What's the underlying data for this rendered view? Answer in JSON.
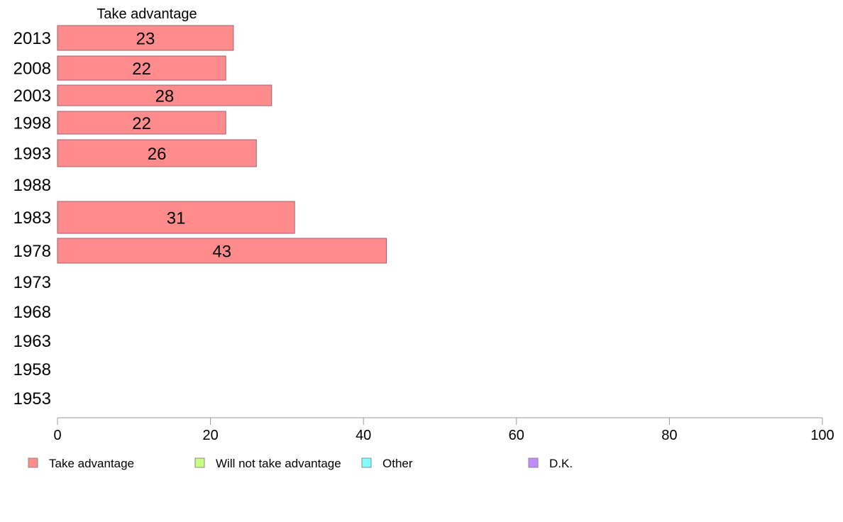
{
  "chart_data": {
    "type": "bar",
    "orientation": "horizontal",
    "series_title": "Take advantage",
    "categories": [
      "2013",
      "2008",
      "2003",
      "1998",
      "1993",
      "1988",
      "1983",
      "1978",
      "1973",
      "1968",
      "1963",
      "1958",
      "1953"
    ],
    "series": [
      {
        "name": "Take advantage",
        "color": "#ff8c8c",
        "values": [
          23,
          22,
          28,
          22,
          26,
          null,
          31,
          43,
          null,
          null,
          null,
          null,
          null
        ]
      }
    ],
    "xlim": [
      0,
      100
    ],
    "xticks": [
      0,
      20,
      40,
      60,
      80,
      100
    ],
    "xlabel": "",
    "ylabel": "",
    "grid": false,
    "legend": {
      "placement": "bottom",
      "items": [
        {
          "label": "Take advantage",
          "color": "#ff8c8c"
        },
        {
          "label": "Will not take advantage",
          "color": "#c8ff80"
        },
        {
          "label": "Other",
          "color": "#80ffff"
        },
        {
          "label": "D.K.",
          "color": "#c08cff"
        }
      ]
    }
  }
}
